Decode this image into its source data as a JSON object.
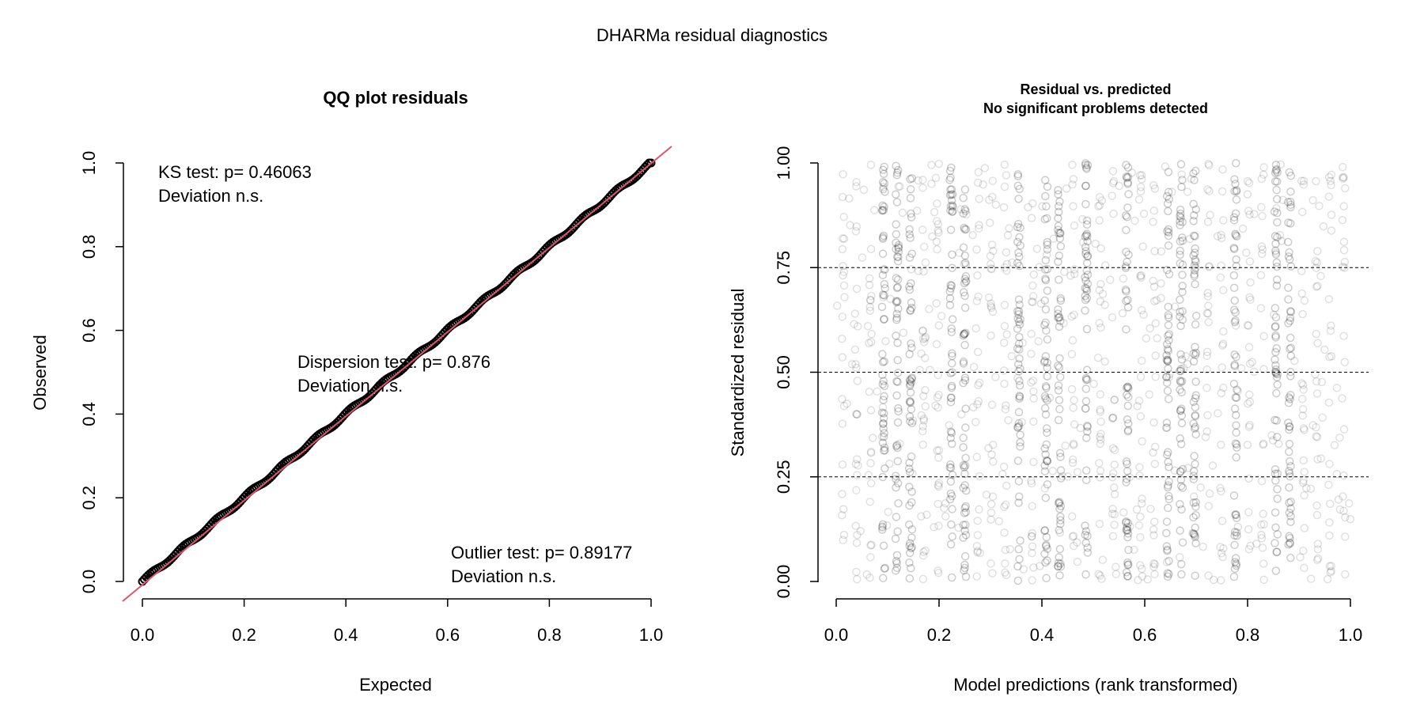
{
  "figure_title": "DHARMa residual diagnostics",
  "chart_data": [
    {
      "type": "scatter",
      "title": "QQ plot residuals",
      "xlabel": "Expected",
      "ylabel": "Observed",
      "xlim": [
        0,
        1
      ],
      "ylim": [
        0,
        1
      ],
      "x_ticks": [
        "0.0",
        "0.2",
        "0.4",
        "0.6",
        "0.8",
        "1.0"
      ],
      "y_ticks": [
        "0.0",
        "0.2",
        "0.4",
        "0.6",
        "0.8",
        "1.0"
      ],
      "reference_line": {
        "slope": 1,
        "intercept": 0,
        "color": "#DF536B"
      },
      "point_color": "#000000",
      "qq_points_approx": [
        [
          0.0,
          0.0
        ],
        [
          0.1,
          0.1
        ],
        [
          0.2,
          0.2
        ],
        [
          0.3,
          0.3
        ],
        [
          0.4,
          0.4
        ],
        [
          0.5,
          0.5
        ],
        [
          0.6,
          0.6
        ],
        [
          0.7,
          0.7
        ],
        [
          0.8,
          0.8
        ],
        [
          0.9,
          0.9
        ],
        [
          1.0,
          1.0
        ]
      ],
      "annotations": {
        "ks_test": "KS test: p= 0.46063",
        "ks_deviation": "Deviation  n.s.",
        "dispersion_test": "Dispersion test: p= 0.876",
        "dispersion_deviation": "Deviation  n.s.",
        "outlier_test": "Outlier test: p= 0.89177",
        "outlier_deviation": "Deviation  n.s."
      },
      "grid": false
    },
    {
      "type": "scatter",
      "title": "Residual vs. predicted",
      "subtitle": "No significant problems detected",
      "xlabel": "Model predictions (rank transformed)",
      "ylabel": "Standardized residual",
      "xlim": [
        0,
        1
      ],
      "ylim": [
        0,
        1
      ],
      "x_ticks": [
        "0.0",
        "0.2",
        "0.4",
        "0.6",
        "0.8",
        "1.0"
      ],
      "y_ticks": [
        "0.00",
        "0.25",
        "0.50",
        "0.75",
        "1.00"
      ],
      "reference_lines_y": [
        0.25,
        0.5,
        0.75
      ],
      "point_color": "#000000",
      "point_alpha": 0.12,
      "distinct_prediction_levels_approx": 38,
      "grid": false
    }
  ]
}
